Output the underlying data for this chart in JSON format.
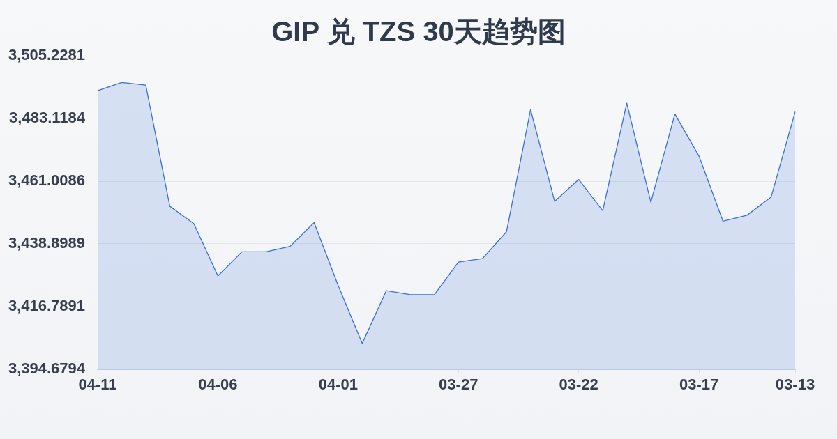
{
  "chart_data": {
    "type": "area",
    "title": "GIP 兑 TZS 30天趋势图",
    "categories": [
      "04-11",
      null,
      null,
      null,
      null,
      "04-06",
      null,
      null,
      null,
      null,
      "04-01",
      null,
      null,
      null,
      null,
      "03-27",
      null,
      null,
      null,
      null,
      "03-22",
      null,
      null,
      null,
      null,
      "03-17",
      null,
      null,
      null,
      "03-13"
    ],
    "values": [
      3492.9,
      3495.8,
      3494.9,
      3452.2,
      3446.0,
      3427.6,
      3436.1,
      3436.1,
      3438.0,
      3446.4,
      3424.2,
      3403.8,
      3422.4,
      3421.0,
      3421.0,
      3432.5,
      3433.7,
      3443.2,
      3486.2,
      3453.9,
      3461.6,
      3450.6,
      3488.5,
      3453.6,
      3484.7,
      3469.9,
      3446.9,
      3449.0,
      3455.4,
      3485.5
    ],
    "color": "#3b6fd4",
    "ylim": [
      3394.6794,
      3505.2281
    ],
    "yticks": [
      {
        "value": 3394.6794,
        "label": "3,394.6794"
      },
      {
        "value": 3416.7891,
        "label": "3,416.7891"
      },
      {
        "value": 3438.8989,
        "label": "3,438.8989"
      },
      {
        "value": 3461.0086,
        "label": "3,461.0086"
      },
      {
        "value": 3483.1184,
        "label": "3,483.1184"
      },
      {
        "value": 3505.2281,
        "label": "3,505.2281"
      }
    ],
    "grid": "y",
    "marker": "none"
  }
}
